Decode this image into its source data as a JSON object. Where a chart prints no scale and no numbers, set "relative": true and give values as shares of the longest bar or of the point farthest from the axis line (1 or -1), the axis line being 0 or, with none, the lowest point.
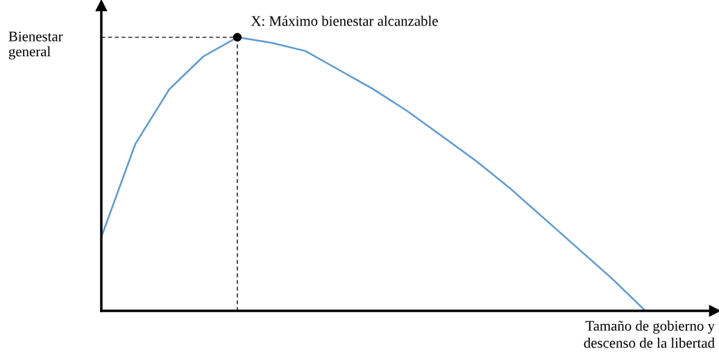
{
  "chart_data": {
    "type": "line",
    "relative": true,
    "xlabel": "Tamaño de gobierno y descenso de la libertad",
    "ylabel": "Bienestar general",
    "categories": [
      null,
      null,
      null,
      null,
      null,
      null,
      null,
      null,
      null,
      null,
      null,
      null,
      null,
      null,
      null,
      null,
      null
    ],
    "series": [
      {
        "color": "#5b9bd5",
        "values": [
          0.27,
          0.61,
          0.81,
          0.93,
          1.0,
          0.98,
          0.95,
          0.88,
          0.81,
          0.73,
          0.64,
          0.55,
          0.45,
          0.34,
          0.23,
          0.12,
          0
        ]
      }
    ],
    "annotations": [
      "X: Máximo bienestar alcanzable"
    ],
    "ref_lines": [
      {
        "axis": "y",
        "value": 1.0,
        "color": "#000000",
        "line_style": "dashed"
      }
    ],
    "legend": false,
    "tick_labels": false
  }
}
